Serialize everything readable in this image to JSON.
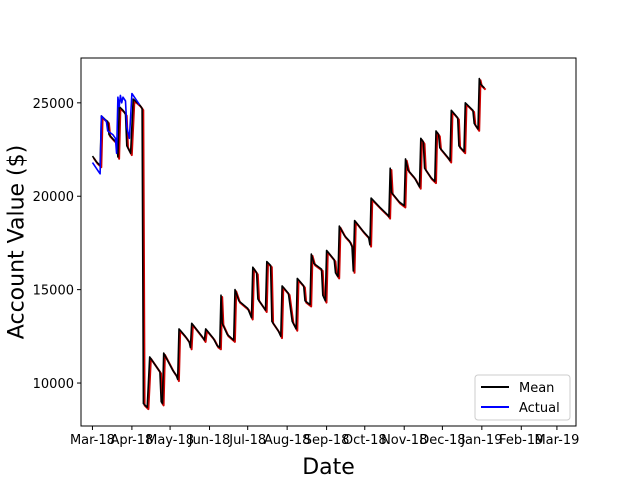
{
  "chart_data": {
    "type": "line",
    "xlabel": "Date",
    "ylabel": "Account Value ($)",
    "x_ticks": [
      "Mar-18",
      "Apr-18",
      "May-18",
      "Jun-18",
      "Jul-18",
      "Aug-18",
      "Sep-18",
      "Oct-18",
      "Nov-18",
      "Dec-18",
      "Jan-19",
      "Feb-19",
      "Mar-19"
    ],
    "y_ticks": [
      10000,
      15000,
      20000,
      25000
    ],
    "ylim": [
      7700,
      27400
    ],
    "xlim_days": [
      -9,
      380
    ],
    "legend": {
      "placement": "lower-right",
      "entries": [
        "Mean",
        "Actual"
      ]
    },
    "series": [
      {
        "name": "Mean",
        "color": "#000000",
        "shadow_color": "#cc0000",
        "points": [
          [
            "2018-03-01",
            22150
          ],
          [
            "2018-03-04",
            21850
          ],
          [
            "2018-03-07",
            21650
          ],
          [
            "2018-03-08",
            24300
          ],
          [
            "2018-03-11",
            24100
          ],
          [
            "2018-03-13",
            24000
          ],
          [
            "2018-03-14",
            23300
          ],
          [
            "2018-03-18",
            23000
          ],
          [
            "2018-03-20",
            22900
          ],
          [
            "2018-03-21",
            22100
          ],
          [
            "2018-03-22",
            24800
          ],
          [
            "2018-03-25",
            24600
          ],
          [
            "2018-03-27",
            24400
          ],
          [
            "2018-03-28",
            22700
          ],
          [
            "2018-03-31",
            22300
          ],
          [
            "2018-04-02",
            25200
          ],
          [
            "2018-04-07",
            24900
          ],
          [
            "2018-04-09",
            24700
          ],
          [
            "2018-04-10",
            8900
          ],
          [
            "2018-04-13",
            8700
          ],
          [
            "2018-04-15",
            11400
          ],
          [
            "2018-04-20",
            10900
          ],
          [
            "2018-04-23",
            10600
          ],
          [
            "2018-04-24",
            9000
          ],
          [
            "2018-04-25",
            8900
          ],
          [
            "2018-04-26",
            11600
          ],
          [
            "2018-05-03",
            10700
          ],
          [
            "2018-05-06",
            10400
          ],
          [
            "2018-05-07",
            10200
          ],
          [
            "2018-05-08",
            12900
          ],
          [
            "2018-05-13",
            12500
          ],
          [
            "2018-05-16",
            12200
          ],
          [
            "2018-05-17",
            11900
          ],
          [
            "2018-05-18",
            13200
          ],
          [
            "2018-05-26",
            12500
          ],
          [
            "2018-05-28",
            12300
          ],
          [
            "2018-05-29",
            12900
          ],
          [
            "2018-06-04",
            12400
          ],
          [
            "2018-06-07",
            12000
          ],
          [
            "2018-06-09",
            11900
          ],
          [
            "2018-06-10",
            14700
          ],
          [
            "2018-06-11",
            13200
          ],
          [
            "2018-06-15",
            12600
          ],
          [
            "2018-06-20",
            12300
          ],
          [
            "2018-06-21",
            15000
          ],
          [
            "2018-06-24",
            14400
          ],
          [
            "2018-07-01",
            14000
          ],
          [
            "2018-07-04",
            13500
          ],
          [
            "2018-07-05",
            16200
          ],
          [
            "2018-07-08",
            15900
          ],
          [
            "2018-07-09",
            14500
          ],
          [
            "2018-07-13",
            14100
          ],
          [
            "2018-07-15",
            13900
          ],
          [
            "2018-07-16",
            16500
          ],
          [
            "2018-07-19",
            16300
          ],
          [
            "2018-07-20",
            13300
          ],
          [
            "2018-07-25",
            12800
          ],
          [
            "2018-07-27",
            12500
          ],
          [
            "2018-07-28",
            15200
          ],
          [
            "2018-08-02",
            14800
          ],
          [
            "2018-08-05",
            13300
          ],
          [
            "2018-08-08",
            12900
          ],
          [
            "2018-08-09",
            15600
          ],
          [
            "2018-08-14",
            15200
          ],
          [
            "2018-08-15",
            14400
          ],
          [
            "2018-08-19",
            14200
          ],
          [
            "2018-08-20",
            16900
          ],
          [
            "2018-08-22",
            16400
          ],
          [
            "2018-08-28",
            16100
          ],
          [
            "2018-08-29",
            14700
          ],
          [
            "2018-08-31",
            14400
          ],
          [
            "2018-09-01",
            17100
          ],
          [
            "2018-09-07",
            16600
          ],
          [
            "2018-09-08",
            15900
          ],
          [
            "2018-09-10",
            15700
          ],
          [
            "2018-09-11",
            18400
          ],
          [
            "2018-09-15",
            17900
          ],
          [
            "2018-09-19",
            17600
          ],
          [
            "2018-09-21",
            17300
          ],
          [
            "2018-09-22",
            16000
          ],
          [
            "2018-09-23",
            18700
          ],
          [
            "2018-09-30",
            18100
          ],
          [
            "2018-10-04",
            17800
          ],
          [
            "2018-10-05",
            17400
          ],
          [
            "2018-10-06",
            19900
          ],
          [
            "2018-10-13",
            19400
          ],
          [
            "2018-10-19",
            19000
          ],
          [
            "2018-10-20",
            18900
          ],
          [
            "2018-10-21",
            21500
          ],
          [
            "2018-10-22",
            20200
          ],
          [
            "2018-10-28",
            19700
          ],
          [
            "2018-11-01",
            19500
          ],
          [
            "2018-11-02",
            22000
          ],
          [
            "2018-11-04",
            21400
          ],
          [
            "2018-11-09",
            21000
          ],
          [
            "2018-11-13",
            20500
          ],
          [
            "2018-11-14",
            23100
          ],
          [
            "2018-11-16",
            22900
          ],
          [
            "2018-11-17",
            21500
          ],
          [
            "2018-11-22",
            21000
          ],
          [
            "2018-11-25",
            20800
          ],
          [
            "2018-11-26",
            23500
          ],
          [
            "2018-11-28",
            23300
          ],
          [
            "2018-11-29",
            22600
          ],
          [
            "2018-12-05",
            22100
          ],
          [
            "2018-12-07",
            21900
          ],
          [
            "2018-12-08",
            24600
          ],
          [
            "2018-12-13",
            24200
          ],
          [
            "2018-12-14",
            22700
          ],
          [
            "2018-12-18",
            22400
          ],
          [
            "2018-12-19",
            25000
          ],
          [
            "2018-12-25",
            24600
          ],
          [
            "2018-12-26",
            23900
          ],
          [
            "2018-12-29",
            23600
          ],
          [
            "2018-12-30",
            26300
          ],
          [
            "2018-12-31",
            26000
          ],
          [
            "2019-01-03",
            25800
          ]
        ]
      },
      {
        "name": "Actual",
        "color": "#0000ff",
        "points": [
          [
            "2018-03-01",
            21800
          ],
          [
            "2018-03-06",
            21300
          ],
          [
            "2018-03-07",
            21200
          ],
          [
            "2018-03-08",
            24300
          ],
          [
            "2018-03-12",
            24000
          ],
          [
            "2018-03-13",
            23500
          ],
          [
            "2018-03-17",
            23300
          ],
          [
            "2018-03-19",
            23100
          ],
          [
            "2018-03-20",
            22300
          ],
          [
            "2018-03-21",
            25300
          ],
          [
            "2018-03-22",
            24800
          ],
          [
            "2018-03-23",
            25400
          ],
          [
            "2018-03-24",
            25000
          ],
          [
            "2018-03-25",
            25300
          ],
          [
            "2018-03-27",
            25100
          ],
          [
            "2018-03-28",
            23700
          ],
          [
            "2018-03-30",
            23100
          ],
          [
            "2018-04-01",
            25500
          ],
          [
            "2018-04-04",
            25200
          ],
          [
            "2018-04-07",
            24900
          ]
        ]
      }
    ]
  }
}
